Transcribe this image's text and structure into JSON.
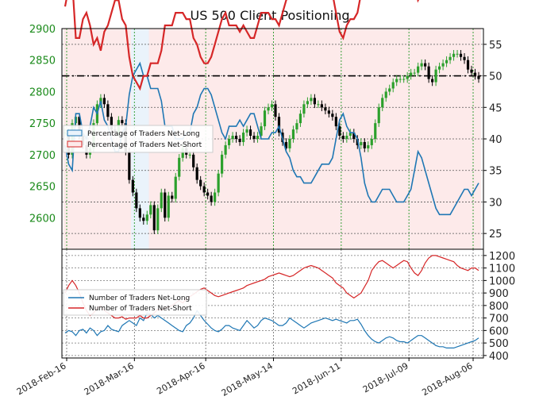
{
  "chart_data": {
    "title": "US 500 Client Positioning",
    "colors": {
      "net_long": "#1f77b4",
      "net_short": "#d62728",
      "candle_up": "#2ca02c",
      "candle_down": "#000000",
      "left_axis_text": "#1a8a1a",
      "long_region": "#eaf3fb",
      "short_region": "#fdeaea"
    },
    "x_dates": [
      "2018-Feb-16",
      "2018-Mar-16",
      "2018-Apr-16",
      "2018-May-14",
      "2018-Jun-11",
      "2018-Jul-09",
      "2018-Aug-06"
    ],
    "upper_panel": {
      "type": "candlestick+line",
      "left_axis": {
        "label": "",
        "ticks": [
          2600,
          2650,
          2700,
          2750,
          2800,
          2850,
          2900
        ],
        "range": [
          2550,
          2900
        ]
      },
      "right_axis": {
        "label": "",
        "ticks": [
          25,
          30,
          35,
          40,
          45,
          50,
          55
        ],
        "range": [
          22.5,
          57.5
        ]
      },
      "reference_line_value": 50,
      "legend": {
        "position": "upper-left",
        "entries": [
          "Percentage of Traders Net-Long",
          "Percentage of Traders Net-Short"
        ]
      },
      "price_close": [
        2735,
        2700,
        2750,
        2760,
        2730,
        2715,
        2700,
        2710,
        2750,
        2780,
        2790,
        2780,
        2760,
        2740,
        2735,
        2755,
        2750,
        2705,
        2660,
        2640,
        2615,
        2600,
        2595,
        2605,
        2620,
        2580,
        2615,
        2640,
        2600,
        2635,
        2630,
        2665,
        2695,
        2710,
        2700,
        2700,
        2680,
        2660,
        2650,
        2640,
        2635,
        2625,
        2640,
        2670,
        2700,
        2715,
        2725,
        2730,
        2725,
        2720,
        2735,
        2740,
        2730,
        2725,
        2730,
        2745,
        2770,
        2775,
        2780,
        2760,
        2735,
        2720,
        2710,
        2725,
        2740,
        2750,
        2765,
        2780,
        2785,
        2790,
        2780,
        2780,
        2775,
        2770,
        2765,
        2760,
        2745,
        2730,
        2725,
        2730,
        2735,
        2725,
        2715,
        2720,
        2710,
        2715,
        2725,
        2750,
        2775,
        2790,
        2800,
        2805,
        2815,
        2820,
        2820,
        2820,
        2825,
        2830,
        2830,
        2840,
        2845,
        2840,
        2820,
        2815,
        2835,
        2840,
        2845,
        2850,
        2855,
        2860,
        2860,
        2855,
        2850,
        2835,
        2830,
        2825,
        2820
      ],
      "net_long_pct": [
        39,
        36,
        35,
        44,
        44,
        41,
        40,
        42,
        45,
        44,
        46,
        43,
        42,
        40,
        38,
        38,
        41,
        42,
        47,
        50,
        51,
        52,
        50,
        50,
        48,
        48,
        48,
        46,
        42,
        42,
        42,
        40,
        40,
        40,
        41,
        41,
        44,
        45,
        47,
        48,
        48,
        47,
        45,
        43,
        41,
        40,
        42,
        42,
        42,
        43,
        42,
        43,
        44,
        44,
        42,
        40,
        40,
        40,
        41,
        41,
        42,
        40,
        38,
        37,
        35,
        34,
        34,
        33,
        33,
        33,
        34,
        35,
        36,
        36,
        36,
        37,
        40,
        43,
        44,
        42,
        41,
        41,
        40,
        37,
        33,
        31,
        30,
        30,
        31,
        32,
        32,
        32,
        31,
        30,
        30,
        30,
        31,
        32,
        35,
        38,
        37,
        35,
        33,
        31,
        29,
        28,
        28,
        28,
        28,
        29,
        30,
        31,
        32,
        32,
        31,
        32,
        33
      ]
    },
    "lower_panel": {
      "type": "line",
      "right_axis": {
        "label": "",
        "ticks": [
          400,
          500,
          600,
          700,
          800,
          900,
          1000,
          1100,
          1200
        ],
        "range": [
          380,
          1250
        ]
      },
      "legend": {
        "position": "left",
        "entries": [
          "Number of Traders Net-Long",
          "Number of Traders Net-Short"
        ]
      },
      "series": [
        {
          "name": "Number of Traders Net-Long",
          "values": [
            580,
            600,
            590,
            560,
            600,
            610,
            580,
            620,
            600,
            560,
            590,
            600,
            640,
            610,
            600,
            590,
            640,
            660,
            680,
            660,
            640,
            700,
            680,
            740,
            730,
            700,
            720,
            700,
            680,
            660,
            640,
            620,
            600,
            590,
            640,
            660,
            700,
            760,
            720,
            680,
            650,
            620,
            600,
            590,
            610,
            640,
            640,
            620,
            610,
            600,
            640,
            680,
            650,
            620,
            640,
            680,
            700,
            690,
            680,
            660,
            640,
            640,
            660,
            700,
            680,
            660,
            640,
            620,
            640,
            660,
            670,
            680,
            690,
            700,
            690,
            680,
            690,
            680,
            670,
            660,
            680,
            680,
            690,
            650,
            600,
            560,
            530,
            510,
            500,
            520,
            540,
            550,
            540,
            520,
            510,
            510,
            500,
            520,
            540,
            560,
            560,
            540,
            520,
            500,
            480,
            470,
            470,
            460,
            460,
            460,
            470,
            480,
            490,
            500,
            510,
            520,
            540
          ]
        },
        {
          "name": "Number of Traders Net-Short",
          "values": [
            900,
            960,
            1000,
            960,
            900,
            820,
            760,
            720,
            740,
            780,
            800,
            760,
            740,
            720,
            700,
            700,
            710,
            690,
            700,
            700,
            700,
            720,
            700,
            700,
            720,
            740,
            770,
            760,
            780,
            790,
            800,
            820,
            840,
            820,
            850,
            870,
            890,
            910,
            930,
            940,
            920,
            900,
            880,
            870,
            880,
            890,
            900,
            910,
            920,
            930,
            940,
            960,
            970,
            980,
            990,
            1000,
            1010,
            1030,
            1040,
            1050,
            1060,
            1050,
            1040,
            1030,
            1040,
            1060,
            1080,
            1100,
            1110,
            1120,
            1110,
            1100,
            1080,
            1060,
            1040,
            1020,
            980,
            960,
            940,
            900,
            880,
            860,
            880,
            900,
            950,
            1000,
            1080,
            1120,
            1150,
            1160,
            1140,
            1120,
            1100,
            1120,
            1140,
            1160,
            1150,
            1100,
            1060,
            1040,
            1080,
            1140,
            1180,
            1200,
            1200,
            1190,
            1180,
            1170,
            1160,
            1150,
            1120,
            1100,
            1090,
            1080,
            1100,
            1100,
            1080
          ]
        }
      ]
    }
  }
}
